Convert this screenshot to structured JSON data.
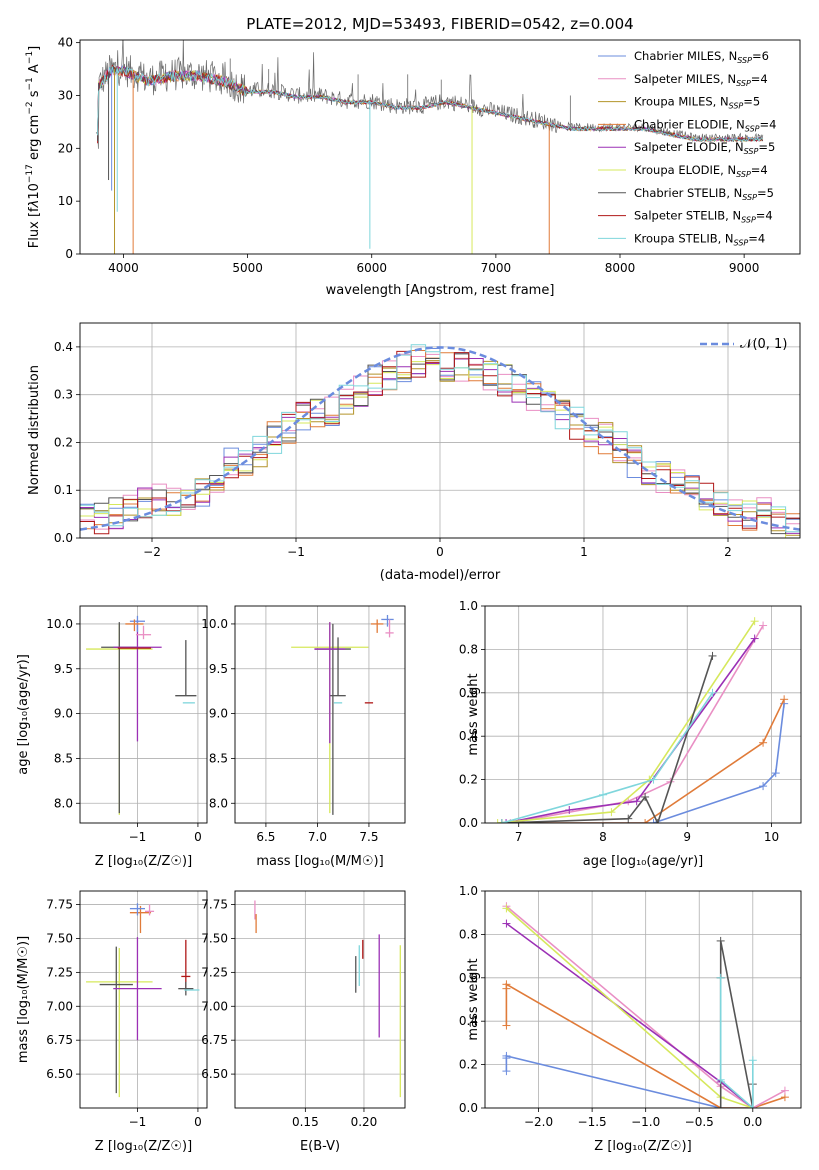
{
  "chart_data": [
    {
      "type": "line",
      "title": "PLATE=2012, MJD=53493, FIBERID=0542, z=0.004",
      "xlabel": "wavelength [Angstrom, rest frame]",
      "ylabel": "Flux [fλ10⁻¹⁷ erg cm⁻² s⁻¹ A⁻¹]",
      "xlim": [
        3650,
        9450
      ],
      "ylim": [
        0,
        40.5
      ],
      "xticks": [
        4000,
        5000,
        6000,
        7000,
        8000,
        9000
      ],
      "yticks": [
        0,
        10,
        20,
        30,
        40
      ],
      "grid": false,
      "legend_position": "upper-right",
      "data_trend": {
        "x": [
          3800,
          3900,
          4000,
          4100,
          4200,
          4400,
          4600,
          4800,
          5000,
          5200,
          5400,
          5600,
          5800,
          6000,
          6200,
          6400,
          6600,
          6800,
          7000,
          7200,
          7400,
          7600,
          7800,
          8000,
          8200,
          8400,
          8600,
          8800,
          9000,
          9150
        ],
        "y": [
          32,
          35,
          35,
          34,
          33,
          34,
          34,
          33,
          31,
          31,
          30,
          30,
          29,
          29,
          28,
          28,
          29,
          28,
          27,
          26,
          25,
          24,
          24,
          24,
          24,
          23,
          22,
          22,
          22,
          22
        ]
      },
      "series": [
        {
          "name": "Chabrier MILES, N_SSP=6",
          "color": "#6b8cde"
        },
        {
          "name": "Salpeter MILES, N_SSP=4",
          "color": "#e98fc4"
        },
        {
          "name": "Kroupa MILES, N_SSP=5",
          "color": "#b3942a"
        },
        {
          "name": "Chabrier ELODIE, N_SSP=4",
          "color": "#e07b39"
        },
        {
          "name": "Salpeter ELODIE, N_SSP=5",
          "color": "#9b30b5"
        },
        {
          "name": "Kroupa ELODIE, N_SSP=4",
          "color": "#d6e85c"
        },
        {
          "name": "Chabrier STELIB, N_SSP=5",
          "color": "#555555"
        },
        {
          "name": "Salpeter STELIB, N_SSP=4",
          "color": "#b01818"
        },
        {
          "name": "Kroupa STELIB, N_SSP=4",
          "color": "#7fd6dc"
        }
      ],
      "legend_labels": [
        {
          "main": "Chabrier MILES, N",
          "sub": "SSP",
          "post": "=6"
        },
        {
          "main": "Salpeter MILES, N",
          "sub": "SSP",
          "post": "=4"
        },
        {
          "main": "Kroupa MILES, N",
          "sub": "SSP",
          "post": "=5"
        },
        {
          "main": "Chabrier ELODIE, N",
          "sub": "SSP",
          "post": "=4"
        },
        {
          "main": "Salpeter ELODIE, N",
          "sub": "SSP",
          "post": "=5"
        },
        {
          "main": "Kroupa ELODIE, N",
          "sub": "SSP",
          "post": "=4"
        },
        {
          "main": "Chabrier STELIB, N",
          "sub": "SSP",
          "post": "=5"
        },
        {
          "main": "Salpeter STELIB, N",
          "sub": "SSP",
          "post": "=4"
        },
        {
          "main": "Kroupa STELIB, N",
          "sub": "SSP",
          "post": "=4"
        }
      ]
    },
    {
      "type": "line",
      "xlabel": "(data-model)/error",
      "ylabel": "Normed distribution",
      "xlim": [
        -2.5,
        2.5
      ],
      "ylim": [
        0,
        0.45
      ],
      "xticks": [
        -2,
        -1,
        0,
        1,
        2
      ],
      "yticks": [
        0.0,
        0.1,
        0.2,
        0.3,
        0.4
      ],
      "grid": true,
      "legend_position": "upper-right",
      "legend_label": "𝒩(0, 1)",
      "bins": [
        -2.5,
        -2.4,
        -2.3,
        -2.2,
        -2.1,
        -2.0,
        -1.9,
        -1.8,
        -1.7,
        -1.6,
        -1.5,
        -1.4,
        -1.3,
        -1.2,
        -1.1,
        -1.0,
        -0.9,
        -0.8,
        -0.7,
        -0.6,
        -0.5,
        -0.4,
        -0.3,
        -0.2,
        -0.1,
        0.0,
        0.1,
        0.2,
        0.3,
        0.4,
        0.5,
        0.6,
        0.7,
        0.8,
        0.9,
        1.0,
        1.1,
        1.2,
        1.3,
        1.4,
        1.5,
        1.6,
        1.7,
        1.8,
        1.9,
        2.0,
        2.1,
        2.2,
        2.3,
        2.4
      ],
      "histogram_trend": [
        0.04,
        0.04,
        0.05,
        0.06,
        0.07,
        0.08,
        0.08,
        0.09,
        0.1,
        0.13,
        0.16,
        0.15,
        0.18,
        0.21,
        0.23,
        0.25,
        0.26,
        0.27,
        0.29,
        0.31,
        0.33,
        0.34,
        0.36,
        0.37,
        0.37,
        0.36,
        0.36,
        0.35,
        0.34,
        0.33,
        0.31,
        0.3,
        0.28,
        0.26,
        0.24,
        0.22,
        0.21,
        0.19,
        0.16,
        0.14,
        0.13,
        0.12,
        0.1,
        0.09,
        0.07,
        0.06,
        0.05,
        0.05,
        0.04,
        0.03
      ],
      "gaussian": {
        "mean": 0,
        "sigma": 1,
        "color": "#6b8cde"
      }
    },
    {
      "type": "scatter",
      "xlabel": "Z [log₁₀(Z/Z☉)]",
      "ylabel": "age  [log₁₀(age/yr)]",
      "xlim": [
        -1.95,
        0.15
      ],
      "ylim": [
        7.78,
        10.2
      ],
      "xticks": [
        -1,
        0
      ],
      "yticks": [
        8.0,
        8.5,
        9.0,
        9.5,
        10.0
      ],
      "grid": true,
      "crosses": [
        {
          "x": -1.3,
          "y": 9.72,
          "xerr": 1.1,
          "yerr": [
            1.85,
            0.28
          ],
          "color": "#d6e85c"
        },
        {
          "x": -1.3,
          "y": 9.74,
          "xerr": 0.6,
          "yerr": [
            1.85,
            0.28
          ],
          "color": "#555555"
        },
        {
          "x": -1.0,
          "y": 9.74,
          "xerr": 0.8,
          "yerr": [
            1.05,
            0.3
          ],
          "color": "#9b30b5"
        },
        {
          "x": -1.05,
          "y": 9.73,
          "xerr": 0.55,
          "yerr": [
            0.0,
            0.0
          ],
          "color": "#b01818"
        },
        {
          "x": -1.0,
          "y": 10.03,
          "xerr": 0.25,
          "yerr": [
            0.12,
            0.06
          ],
          "color": "#6b8cde"
        },
        {
          "x": -1.05,
          "y": 10.0,
          "xerr": 0.3,
          "yerr": [
            0.08,
            0.05
          ],
          "color": "#e07b39"
        },
        {
          "x": -0.9,
          "y": 9.88,
          "xerr": 0.25,
          "yerr": [
            0.05,
            0.1
          ],
          "color": "#e98fc4"
        },
        {
          "x": -0.2,
          "y": 9.2,
          "xerr": 0.35,
          "yerr": [
            0.0,
            0.62
          ],
          "color": "#555555"
        },
        {
          "x": -0.15,
          "y": 9.12,
          "xerr": 0.2,
          "yerr": [
            0.0,
            0.0
          ],
          "color": "#7fd6dc"
        }
      ]
    },
    {
      "type": "scatter",
      "xlabel": "mass [log₁₀(M/M☉)]",
      "xlim": [
        6.2,
        7.85
      ],
      "ylim": [
        7.78,
        10.2
      ],
      "xticks": [
        6.5,
        7.0,
        7.5
      ],
      "yticks": [
        8.0,
        8.5,
        9.0,
        9.5,
        10.0
      ],
      "grid": true,
      "crosses": [
        {
          "x": 7.12,
          "y": 9.74,
          "xerr": 0.75,
          "yerr": [
            1.85,
            0.28
          ],
          "color": "#d6e85c"
        },
        {
          "x": 7.15,
          "y": 9.72,
          "xerr": 0.35,
          "yerr": [
            1.85,
            0.28
          ],
          "color": "#555555"
        },
        {
          "x": 7.12,
          "y": 9.72,
          "xerr": 0.3,
          "yerr": [
            1.05,
            0.3
          ],
          "color": "#9b30b5"
        },
        {
          "x": 7.2,
          "y": 9.2,
          "xerr": 0.15,
          "yerr": [
            0.0,
            0.65
          ],
          "color": "#555555"
        },
        {
          "x": 7.2,
          "y": 9.12,
          "xerr": 0.08,
          "yerr": [
            0.0,
            0.0
          ],
          "color": "#7fd6dc"
        },
        {
          "x": 7.5,
          "y": 9.12,
          "xerr": 0.08,
          "yerr": [
            0.0,
            0.0
          ],
          "color": "#b01818"
        },
        {
          "x": 7.68,
          "y": 10.05,
          "xerr": 0.12,
          "yerr": [
            0.08,
            0.05
          ],
          "color": "#6b8cde"
        },
        {
          "x": 7.58,
          "y": 10.0,
          "xerr": 0.12,
          "yerr": [
            0.1,
            0.05
          ],
          "color": "#e07b39"
        },
        {
          "x": 7.7,
          "y": 9.9,
          "xerr": 0.08,
          "yerr": [
            0.05,
            0.15
          ],
          "color": "#e98fc4"
        }
      ]
    },
    {
      "type": "line",
      "xlabel": "age  [log₁₀(age/yr)]",
      "ylabel": "mass weight",
      "xlim": [
        6.6,
        10.35
      ],
      "ylim": [
        0,
        1.0
      ],
      "xticks": [
        7,
        8,
        9,
        10
      ],
      "yticks": [
        0.0,
        0.2,
        0.4,
        0.6,
        0.8,
        1.0
      ],
      "grid": true,
      "series": [
        {
          "name": "Chabrier MILES",
          "color": "#6b8cde",
          "x": [
            6.8,
            8.6,
            9.9,
            10.05,
            10.15
          ],
          "y": [
            0.0,
            0.0,
            0.17,
            0.23,
            0.55
          ]
        },
        {
          "name": "Chabrier ELODIE",
          "color": "#e07b39",
          "x": [
            6.8,
            8.5,
            9.9,
            10.15
          ],
          "y": [
            0.0,
            0.0,
            0.37,
            0.57
          ]
        },
        {
          "name": "Salpeter MILES",
          "color": "#e98fc4",
          "x": [
            6.9,
            8.3,
            8.8,
            9.9
          ],
          "y": [
            0.0,
            0.1,
            0.19,
            0.91
          ]
        },
        {
          "name": "Salpeter ELODIE",
          "color": "#9b30b5",
          "x": [
            6.85,
            7.6,
            8.4,
            9.8
          ],
          "y": [
            0.0,
            0.06,
            0.1,
            0.85
          ]
        },
        {
          "name": "Kroupa ELODIE",
          "color": "#d6e85c",
          "x": [
            6.75,
            8.1,
            8.55,
            9.8
          ],
          "y": [
            0.0,
            0.05,
            0.2,
            0.93
          ]
        },
        {
          "name": "Chabrier STELIB",
          "color": "#555555",
          "x": [
            6.8,
            8.3,
            8.5,
            8.65,
            9.3
          ],
          "y": [
            0.0,
            0.02,
            0.12,
            0.0,
            0.77
          ]
        },
        {
          "name": "Kroupa STELIB",
          "color": "#7fd6dc",
          "x": [
            6.8,
            8.0,
            8.6,
            9.3
          ],
          "y": [
            0.0,
            0.13,
            0.2,
            0.6
          ]
        }
      ]
    },
    {
      "type": "scatter",
      "xlabel": "Z [log₁₀(Z/Z☉)]",
      "ylabel": "mass [log₁₀(M/M☉)]",
      "xlim": [
        -1.95,
        0.15
      ],
      "ylim": [
        6.25,
        7.85
      ],
      "xticks": [
        -1,
        0
      ],
      "yticks": [
        6.5,
        6.75,
        7.0,
        7.25,
        7.5,
        7.75
      ],
      "grid": true,
      "crosses": [
        {
          "x": -1.3,
          "y": 7.18,
          "xerr": 1.1,
          "yerr": [
            0.85,
            0.25
          ],
          "color": "#d6e85c"
        },
        {
          "x": -1.35,
          "y": 7.16,
          "xerr": 0.55,
          "yerr": [
            0.8,
            0.28
          ],
          "color": "#555555"
        },
        {
          "x": -1.0,
          "y": 7.13,
          "xerr": 0.8,
          "yerr": [
            0.38,
            0.38
          ],
          "color": "#9b30b5"
        },
        {
          "x": -0.95,
          "y": 7.69,
          "xerr": 0.35,
          "yerr": [
            0.15,
            0.05
          ],
          "color": "#e07b39"
        },
        {
          "x": -1.0,
          "y": 7.72,
          "xerr": 0.25,
          "yerr": [
            0.05,
            0.04
          ],
          "color": "#6b8cde"
        },
        {
          "x": -0.8,
          "y": 7.7,
          "xerr": 0.15,
          "yerr": [
            0.03,
            0.05
          ],
          "color": "#e98fc4"
        },
        {
          "x": -0.2,
          "y": 7.22,
          "xerr": 0.15,
          "yerr": [
            0.1,
            0.27
          ],
          "color": "#b01818"
        },
        {
          "x": -0.2,
          "y": 7.13,
          "xerr": 0.25,
          "yerr": [
            0.05,
            0.05
          ],
          "color": "#555555"
        },
        {
          "x": -0.1,
          "y": 7.12,
          "xerr": 0.25,
          "yerr": [
            0.0,
            0.0
          ],
          "color": "#7fd6dc"
        }
      ]
    },
    {
      "type": "scatter",
      "xlabel": "E(B-V)",
      "xlim": [
        0.09,
        0.235
      ],
      "ylim": [
        6.25,
        7.85
      ],
      "xticks": [
        0.15,
        0.2
      ],
      "yticks": [
        6.5,
        6.75,
        7.0,
        7.25,
        7.5,
        7.75
      ],
      "grid": true,
      "crosses": [
        {
          "x": 0.107,
          "y": 7.7,
          "xerr": 0.0,
          "yerr": [
            0.06,
            0.08
          ],
          "color": "#e98fc4"
        },
        {
          "x": 0.108,
          "y": 7.62,
          "xerr": 0.0,
          "yerr": [
            0.08,
            0.06
          ],
          "color": "#e07b39"
        },
        {
          "x": 0.193,
          "y": 7.22,
          "xerr": 0.0,
          "yerr": [
            0.12,
            0.15
          ],
          "color": "#555555"
        },
        {
          "x": 0.196,
          "y": 7.25,
          "xerr": 0.0,
          "yerr": [
            0.1,
            0.2
          ],
          "color": "#7fd6dc"
        },
        {
          "x": 0.199,
          "y": 7.35,
          "xerr": 0.0,
          "yerr": [
            0.0,
            0.14
          ],
          "color": "#b01818"
        },
        {
          "x": 0.213,
          "y": 7.15,
          "xerr": 0.0,
          "yerr": [
            0.38,
            0.38
          ],
          "color": "#9b30b5"
        },
        {
          "x": 0.231,
          "y": 6.9,
          "xerr": 0.0,
          "yerr": [
            0.57,
            0.55
          ],
          "color": "#d6e85c"
        }
      ]
    },
    {
      "type": "line",
      "xlabel": "Z [log₁₀(Z/Z☉)]",
      "ylabel": "mass weight",
      "xlim": [
        -2.5,
        0.45
      ],
      "ylim": [
        0,
        1.0
      ],
      "xticks": [
        -2.0,
        -1.5,
        -1.0,
        -0.5,
        0.0
      ],
      "yticks": [
        0.0,
        0.2,
        0.4,
        0.6,
        0.8,
        1.0
      ],
      "grid": true,
      "series": [
        {
          "name": "Chabrier MILES",
          "color": "#6b8cde",
          "x": [
            -2.3,
            -2.3,
            -2.3,
            -0.3,
            0.0
          ],
          "y": [
            0.17,
            0.23,
            0.24,
            0.0,
            0.0
          ]
        },
        {
          "name": "Chabrier ELODIE",
          "color": "#e07b39",
          "x": [
            -2.3,
            -2.3,
            -2.3,
            -0.3,
            0.0,
            0.3
          ],
          "y": [
            0.38,
            0.55,
            0.57,
            0.0,
            0.0,
            0.05
          ]
        },
        {
          "name": "Salpeter MILES",
          "color": "#e98fc4",
          "x": [
            -2.3,
            -0.3,
            0.0,
            0.3
          ],
          "y": [
            0.93,
            0.1,
            0.0,
            0.08
          ]
        },
        {
          "name": "Salpeter ELODIE",
          "color": "#9b30b5",
          "x": [
            -2.3,
            -0.3,
            0.0
          ],
          "y": [
            0.85,
            0.12,
            0.0
          ]
        },
        {
          "name": "Kroupa ELODIE",
          "color": "#d6e85c",
          "x": [
            -2.3,
            -0.3,
            0.0
          ],
          "y": [
            0.92,
            0.05,
            0.0
          ]
        },
        {
          "name": "Chabrier STELIB",
          "color": "#555555",
          "x": [
            -0.3,
            -0.3,
            -0.3,
            0.0,
            0.0
          ],
          "y": [
            0.0,
            0.6,
            0.77,
            0.0,
            0.11
          ]
        },
        {
          "name": "Kroupa STELIB",
          "color": "#7fd6dc",
          "x": [
            -0.3,
            -0.3,
            0.0,
            0.0
          ],
          "y": [
            0.6,
            0.13,
            0.0,
            0.22
          ]
        }
      ]
    }
  ]
}
